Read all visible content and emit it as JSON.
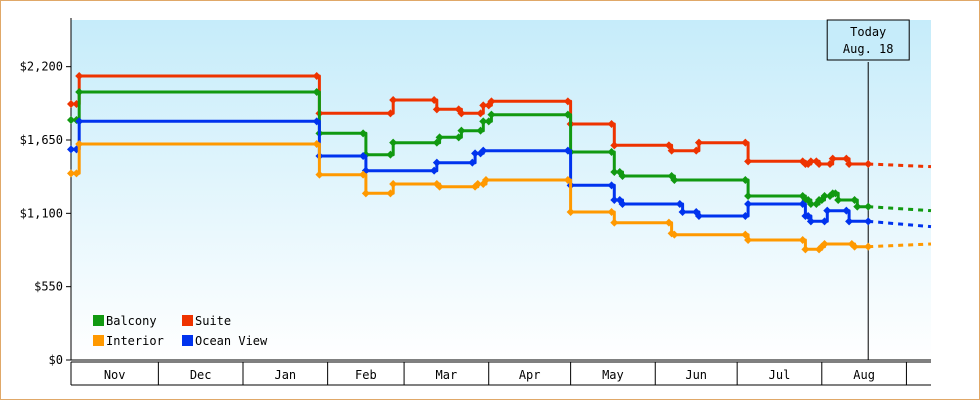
{
  "chart_data": {
    "type": "line",
    "step": true,
    "y_tick_labels": [
      "$0",
      "$550",
      "$1,100",
      "$1,650",
      "$2,200"
    ],
    "y_tick_values": [
      0,
      550,
      1100,
      1650,
      2200
    ],
    "ylim": [
      0,
      2550
    ],
    "x_axis": {
      "start": "2018-10-30",
      "end": "2018-09-10",
      "end_year": 2019,
      "months": [
        "Nov",
        "Dec",
        "Jan",
        "Feb",
        "Mar",
        "Apr",
        "May",
        "Jun",
        "Jul",
        "Aug"
      ]
    },
    "today": {
      "line1": "Today",
      "line2": "Aug. 18",
      "date": "2019-08-18"
    },
    "legend": {
      "placement": "bottom-left"
    },
    "grid": false,
    "background": {
      "top": "#c6ecfa",
      "bottom": "#ffffff"
    },
    "series": [
      {
        "name": "Suite",
        "color": "#ee3300",
        "points": [
          [
            "2018-10-30",
            1920
          ],
          [
            "2018-11-01",
            1920
          ],
          [
            "2018-11-02",
            2130
          ],
          [
            "2019-01-28",
            2130
          ],
          [
            "2019-01-29",
            1850
          ],
          [
            "2019-02-24",
            1850
          ],
          [
            "2019-02-25",
            1950
          ],
          [
            "2019-03-12",
            1950
          ],
          [
            "2019-03-13",
            1880
          ],
          [
            "2019-03-21",
            1880
          ],
          [
            "2019-03-22",
            1850
          ],
          [
            "2019-03-29",
            1850
          ],
          [
            "2019-03-30",
            1910
          ],
          [
            "2019-04-01",
            1910
          ],
          [
            "2019-04-02",
            1940
          ],
          [
            "2019-04-30",
            1940
          ],
          [
            "2019-05-01",
            1770
          ],
          [
            "2019-05-16",
            1770
          ],
          [
            "2019-05-17",
            1610
          ],
          [
            "2019-06-06",
            1610
          ],
          [
            "2019-06-07",
            1570
          ],
          [
            "2019-06-16",
            1570
          ],
          [
            "2019-06-17",
            1630
          ],
          [
            "2019-07-04",
            1630
          ],
          [
            "2019-07-05",
            1490
          ],
          [
            "2019-07-25",
            1490
          ],
          [
            "2019-07-26",
            1470
          ],
          [
            "2019-07-27",
            1470
          ],
          [
            "2019-07-28",
            1490
          ],
          [
            "2019-07-30",
            1490
          ],
          [
            "2019-07-31",
            1470
          ],
          [
            "2019-08-04",
            1470
          ],
          [
            "2019-08-05",
            1510
          ],
          [
            "2019-08-10",
            1510
          ],
          [
            "2019-08-11",
            1470
          ],
          [
            "2019-08-18",
            1470
          ]
        ],
        "forecast": [
          [
            "2019-08-18",
            1470
          ],
          [
            "2019-09-10",
            1450
          ]
        ]
      },
      {
        "name": "Balcony",
        "color": "#119911",
        "points": [
          [
            "2018-10-30",
            1800
          ],
          [
            "2018-11-01",
            1800
          ],
          [
            "2018-11-02",
            2010
          ],
          [
            "2019-01-28",
            2010
          ],
          [
            "2019-01-29",
            1700
          ],
          [
            "2019-02-14",
            1700
          ],
          [
            "2019-02-15",
            1540
          ],
          [
            "2019-02-24",
            1540
          ],
          [
            "2019-02-25",
            1630
          ],
          [
            "2019-03-13",
            1630
          ],
          [
            "2019-03-14",
            1670
          ],
          [
            "2019-03-21",
            1670
          ],
          [
            "2019-03-22",
            1720
          ],
          [
            "2019-03-29",
            1720
          ],
          [
            "2019-03-30",
            1790
          ],
          [
            "2019-04-01",
            1790
          ],
          [
            "2019-04-02",
            1840
          ],
          [
            "2019-04-30",
            1840
          ],
          [
            "2019-05-01",
            1560
          ],
          [
            "2019-05-16",
            1560
          ],
          [
            "2019-05-17",
            1410
          ],
          [
            "2019-05-19",
            1410
          ],
          [
            "2019-05-20",
            1380
          ],
          [
            "2019-06-07",
            1380
          ],
          [
            "2019-06-08",
            1350
          ],
          [
            "2019-07-04",
            1350
          ],
          [
            "2019-07-05",
            1230
          ],
          [
            "2019-07-25",
            1230
          ],
          [
            "2019-07-26",
            1200
          ],
          [
            "2019-07-27",
            1200
          ],
          [
            "2019-07-28",
            1170
          ],
          [
            "2019-07-30",
            1170
          ],
          [
            "2019-07-31",
            1200
          ],
          [
            "2019-08-01",
            1200
          ],
          [
            "2019-08-02",
            1230
          ],
          [
            "2019-08-04",
            1230
          ],
          [
            "2019-08-05",
            1250
          ],
          [
            "2019-08-06",
            1250
          ],
          [
            "2019-08-07",
            1200
          ],
          [
            "2019-08-13",
            1200
          ],
          [
            "2019-08-14",
            1150
          ],
          [
            "2019-08-18",
            1150
          ]
        ],
        "forecast": [
          [
            "2019-08-18",
            1150
          ],
          [
            "2019-09-10",
            1120
          ]
        ]
      },
      {
        "name": "Ocean View",
        "color": "#0033ee",
        "points": [
          [
            "2018-10-30",
            1580
          ],
          [
            "2018-11-01",
            1580
          ],
          [
            "2018-11-02",
            1790
          ],
          [
            "2019-01-28",
            1790
          ],
          [
            "2019-01-29",
            1530
          ],
          [
            "2019-02-14",
            1530
          ],
          [
            "2019-02-15",
            1420
          ],
          [
            "2019-03-12",
            1420
          ],
          [
            "2019-03-13",
            1480
          ],
          [
            "2019-03-26",
            1480
          ],
          [
            "2019-03-27",
            1550
          ],
          [
            "2019-03-29",
            1550
          ],
          [
            "2019-03-30",
            1570
          ],
          [
            "2019-04-30",
            1570
          ],
          [
            "2019-05-01",
            1310
          ],
          [
            "2019-05-16",
            1310
          ],
          [
            "2019-05-17",
            1200
          ],
          [
            "2019-05-19",
            1200
          ],
          [
            "2019-05-20",
            1170
          ],
          [
            "2019-06-10",
            1170
          ],
          [
            "2019-06-11",
            1110
          ],
          [
            "2019-06-16",
            1110
          ],
          [
            "2019-06-17",
            1080
          ],
          [
            "2019-07-04",
            1080
          ],
          [
            "2019-07-05",
            1170
          ],
          [
            "2019-07-25",
            1170
          ],
          [
            "2019-07-26",
            1080
          ],
          [
            "2019-07-27",
            1080
          ],
          [
            "2019-07-28",
            1040
          ],
          [
            "2019-08-02",
            1040
          ],
          [
            "2019-08-03",
            1120
          ],
          [
            "2019-08-10",
            1120
          ],
          [
            "2019-08-11",
            1040
          ],
          [
            "2019-08-18",
            1040
          ]
        ],
        "forecast": [
          [
            "2019-08-18",
            1040
          ],
          [
            "2019-09-10",
            1000
          ]
        ]
      },
      {
        "name": "Interior",
        "color": "#ff9900",
        "points": [
          [
            "2018-10-30",
            1400
          ],
          [
            "2018-11-01",
            1400
          ],
          [
            "2018-11-02",
            1620
          ],
          [
            "2019-01-28",
            1620
          ],
          [
            "2019-01-29",
            1390
          ],
          [
            "2019-02-14",
            1390
          ],
          [
            "2019-02-15",
            1250
          ],
          [
            "2019-02-24",
            1250
          ],
          [
            "2019-02-25",
            1320
          ],
          [
            "2019-03-13",
            1320
          ],
          [
            "2019-03-14",
            1300
          ],
          [
            "2019-03-27",
            1300
          ],
          [
            "2019-03-28",
            1320
          ],
          [
            "2019-03-30",
            1320
          ],
          [
            "2019-03-31",
            1350
          ],
          [
            "2019-04-30",
            1350
          ],
          [
            "2019-05-01",
            1110
          ],
          [
            "2019-05-16",
            1110
          ],
          [
            "2019-05-17",
            1030
          ],
          [
            "2019-06-06",
            1030
          ],
          [
            "2019-06-07",
            950
          ],
          [
            "2019-06-08",
            940
          ],
          [
            "2019-07-04",
            940
          ],
          [
            "2019-07-05",
            900
          ],
          [
            "2019-07-25",
            900
          ],
          [
            "2019-07-26",
            830
          ],
          [
            "2019-07-31",
            830
          ],
          [
            "2019-08-01",
            850
          ],
          [
            "2019-08-02",
            870
          ],
          [
            "2019-08-12",
            870
          ],
          [
            "2019-08-13",
            850
          ],
          [
            "2019-08-18",
            850
          ]
        ],
        "forecast": [
          [
            "2019-08-18",
            850
          ],
          [
            "2019-09-10",
            870
          ]
        ]
      }
    ]
  },
  "legend_items": [
    {
      "name": "Balcony",
      "color": "#119911"
    },
    {
      "name": "Suite",
      "color": "#ee3300"
    },
    {
      "name": "Interior",
      "color": "#ff9900"
    },
    {
      "name": "Ocean View",
      "color": "#0033ee"
    }
  ]
}
